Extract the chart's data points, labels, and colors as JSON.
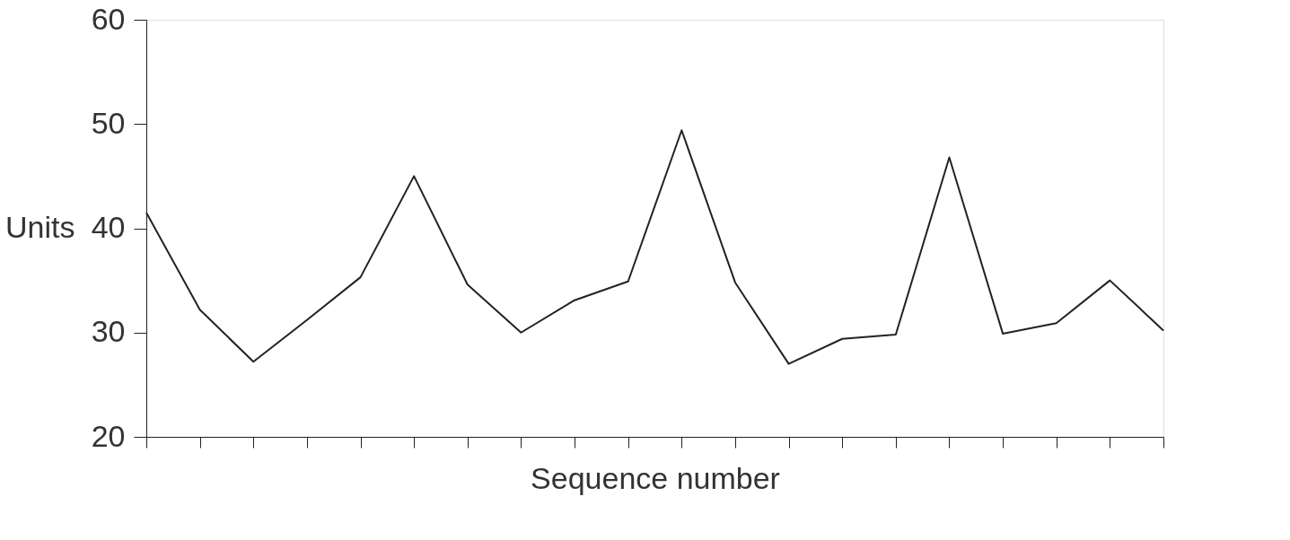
{
  "chart_data": {
    "type": "line",
    "xlabel": "Sequence number",
    "ylabel": "Units",
    "categories": [
      null,
      null,
      null,
      null,
      null,
      null,
      null,
      null,
      null,
      null,
      null,
      null,
      null,
      null,
      null,
      null,
      null,
      null,
      null,
      null
    ],
    "series": [
      {
        "color": "#222222",
        "values": [
          41.5,
          32.2,
          27.2,
          31.2,
          35.3,
          45.0,
          34.6,
          30.0,
          33.1,
          34.9,
          49.4,
          34.8,
          27.0,
          29.4,
          29.8,
          46.8,
          29.9,
          30.9,
          35.0,
          30.2
        ]
      }
    ],
    "ylim": [
      20,
      60
    ],
    "yticks": [
      20,
      30,
      40,
      50,
      60
    ],
    "tick_labels": "y",
    "grid": false,
    "legend": false,
    "marker": "none",
    "line_style": "solid"
  }
}
